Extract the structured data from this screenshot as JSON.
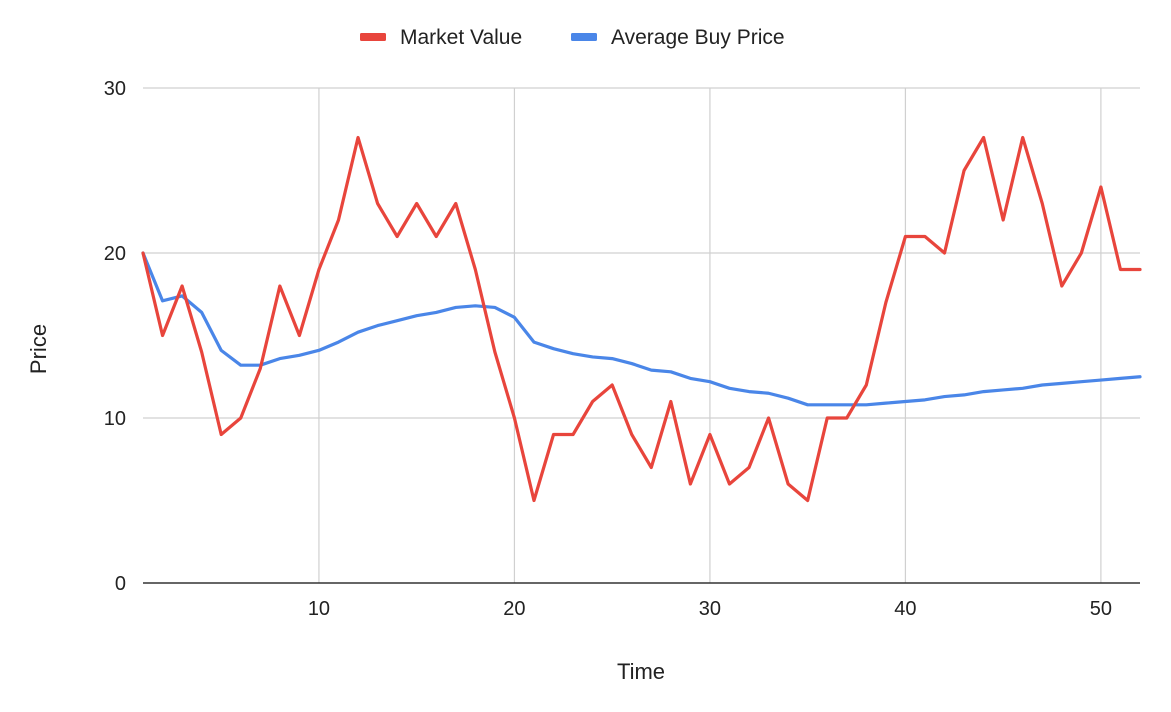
{
  "chart_data": {
    "type": "line",
    "title": "",
    "xlabel": "Time",
    "ylabel": "Price",
    "xlim": [
      1,
      52
    ],
    "ylim": [
      0,
      30
    ],
    "xticks": [
      10,
      20,
      30,
      40,
      50
    ],
    "yticks": [
      0,
      10,
      20,
      30
    ],
    "grid": true,
    "legend_position": "top",
    "x": [
      1,
      2,
      3,
      4,
      5,
      6,
      7,
      8,
      9,
      10,
      11,
      12,
      13,
      14,
      15,
      16,
      17,
      18,
      19,
      20,
      21,
      22,
      23,
      24,
      25,
      26,
      27,
      28,
      29,
      30,
      31,
      32,
      33,
      34,
      35,
      36,
      37,
      38,
      39,
      40,
      41,
      42,
      43,
      44,
      45,
      46,
      47,
      48,
      49,
      50,
      51,
      52
    ],
    "series": [
      {
        "name": "Market Value",
        "color": "#e8453c",
        "values": [
          20,
          15,
          18,
          14,
          9,
          10,
          13,
          18,
          15,
          19,
          22,
          27,
          23,
          21,
          23,
          21,
          23,
          19,
          14,
          10,
          5,
          9,
          9,
          11,
          12,
          9,
          7,
          11,
          6,
          9,
          6,
          7,
          10,
          6,
          5,
          10,
          10,
          12,
          17,
          21,
          21,
          20,
          25,
          27,
          22,
          27,
          23,
          18,
          20,
          24,
          19,
          19
        ]
      },
      {
        "name": "Average Buy Price",
        "color": "#4a86e8",
        "values": [
          20,
          17.1,
          17.4,
          16.4,
          14.1,
          13.2,
          13.2,
          13.6,
          13.8,
          14.1,
          14.6,
          15.2,
          15.6,
          15.9,
          16.2,
          16.4,
          16.7,
          16.8,
          16.7,
          16.1,
          14.6,
          14.2,
          13.9,
          13.7,
          13.6,
          13.3,
          12.9,
          12.8,
          12.4,
          12.2,
          11.8,
          11.6,
          11.5,
          11.2,
          10.8,
          10.8,
          10.8,
          10.8,
          10.9,
          11.0,
          11.1,
          11.3,
          11.4,
          11.6,
          11.7,
          11.8,
          12.0,
          12.1,
          12.2,
          12.3,
          12.4,
          12.5
        ]
      }
    ]
  }
}
